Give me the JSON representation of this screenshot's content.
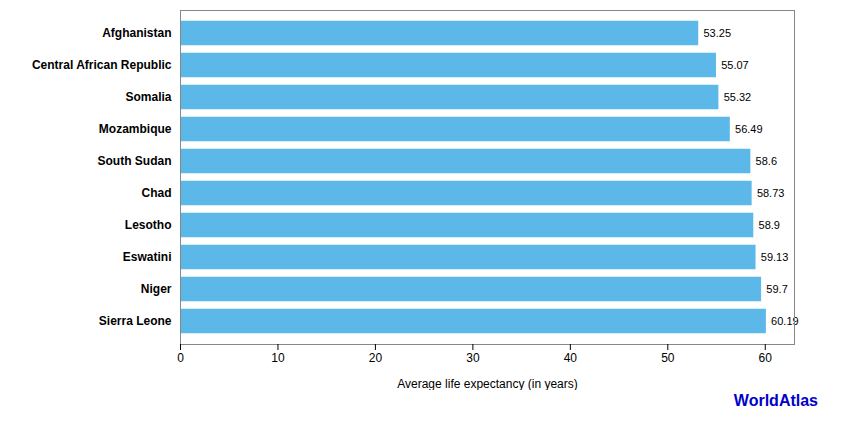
{
  "chart_data": {
    "type": "bar",
    "orientation": "horizontal",
    "categories": [
      "Afghanistan",
      "Central African Republic",
      "Somalia",
      "Mozambique",
      "South Sudan",
      "Chad",
      "Lesotho",
      "Eswatini",
      "Niger",
      "Sierra Leone"
    ],
    "values": [
      53.25,
      55.07,
      55.32,
      56.49,
      58.6,
      58.73,
      58.9,
      59.13,
      59.7,
      60.19
    ],
    "color": "#5bb8e8",
    "xlabel": "Average life expectancy (in years)",
    "xlim": [
      0,
      63
    ],
    "xticks": [
      0,
      10,
      20,
      30,
      40,
      50,
      60
    ],
    "data_labels": true,
    "grid": false,
    "annotations": [
      "WorldAtlas"
    ]
  }
}
